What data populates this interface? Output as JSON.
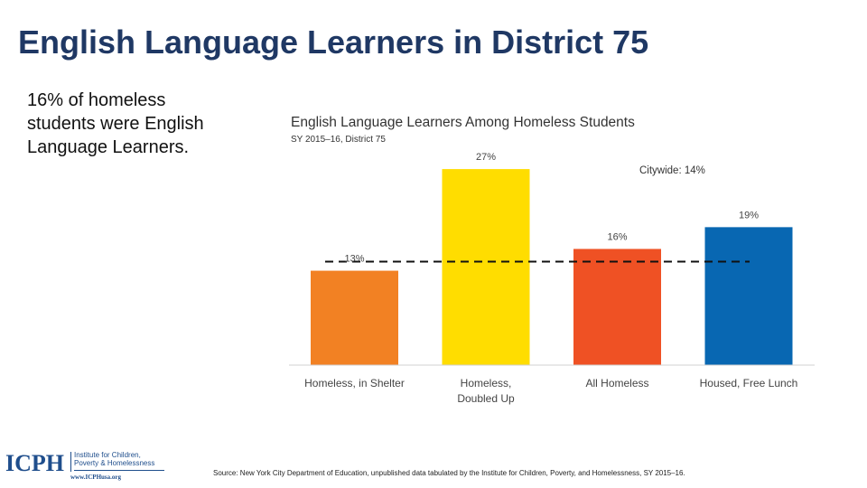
{
  "slide": {
    "title": "English Language Learners in District 75",
    "summary_highlight": "16%",
    "summary_rest": " of homeless students were English Language Learners.",
    "source": "Source: New York City Department of Education, unpublished data tabulated by the Institute for Children, Poverty, and Homelessness, SY 2015–16."
  },
  "logo": {
    "name": "ICPH",
    "institute": "Institute for Children, Poverty & Homelessness",
    "url": "www.ICPHusa.org"
  },
  "chart_data": {
    "type": "bar",
    "title": "English Language Learners Among Homeless Students",
    "subtitle": "SY 2015–16, District 75",
    "categories": [
      [
        "Homeless, in Shelter"
      ],
      [
        "Homeless,",
        "Doubled Up"
      ],
      [
        "All Homeless"
      ],
      [
        "Housed, Free Lunch"
      ]
    ],
    "values": [
      13,
      27,
      16,
      19
    ],
    "value_labels": [
      "13%",
      "27%",
      "16%",
      "19%"
    ],
    "colors": [
      "#f28123",
      "#ffdd00",
      "#ef5124",
      "#0867b2"
    ],
    "reference_line": {
      "label": "Citywide: 14%",
      "value": 14
    },
    "ylim": [
      0,
      30
    ],
    "grid": false
  }
}
